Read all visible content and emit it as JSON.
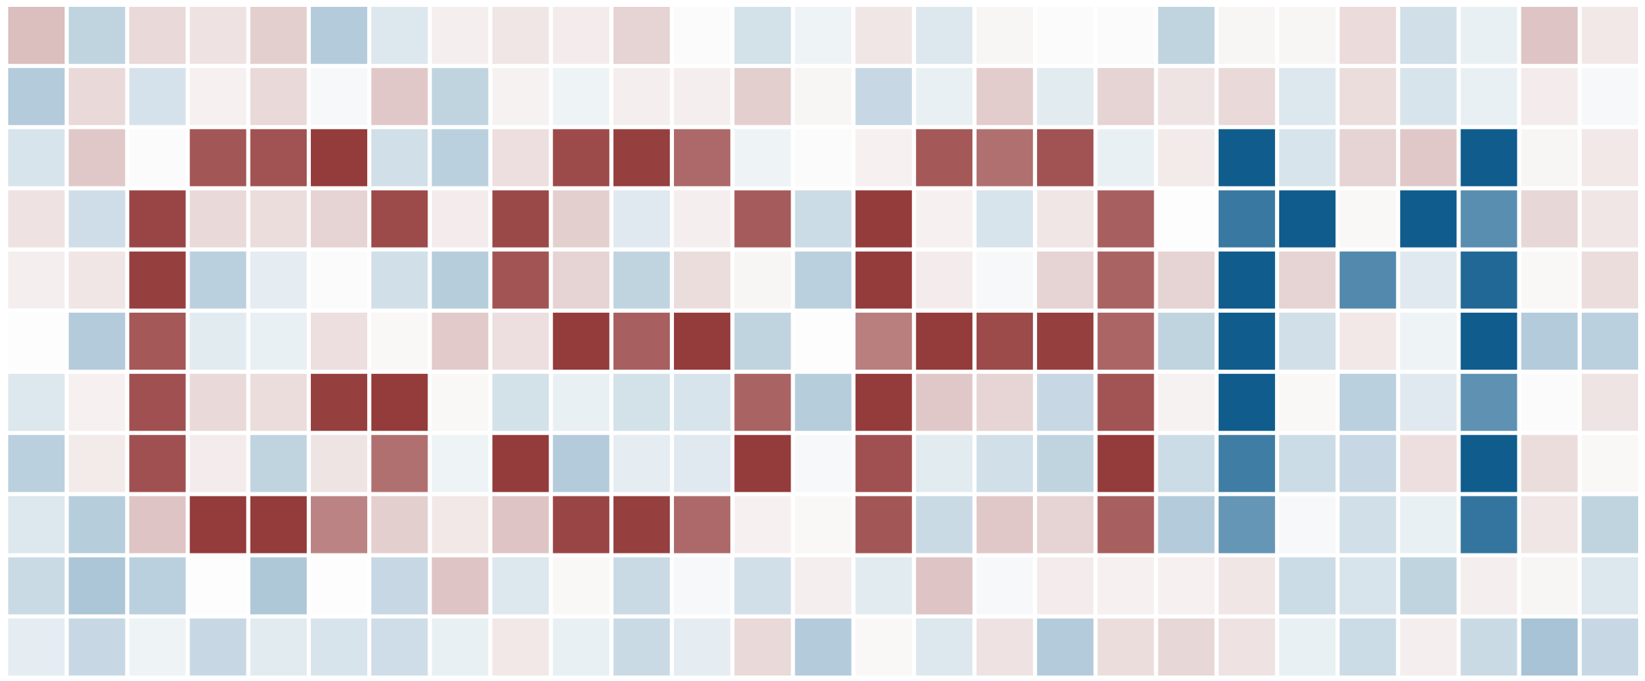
{
  "chart_data": {
    "type": "heatmap",
    "title": "",
    "xlabel": "",
    "ylabel": "",
    "value_range": [
      -1,
      1
    ],
    "colorscale": {
      "negative": "#8b2a2a",
      "zero": "#fdfdfd",
      "positive": "#08578a"
    },
    "rows": 11,
    "cols": 27,
    "values": [
      [
        -0.3,
        0.25,
        -0.17,
        -0.13,
        -0.22,
        0.3,
        0.13,
        -0.07,
        -0.11,
        -0.08,
        -0.2,
        0.01,
        0.17,
        0.06,
        -0.11,
        0.13,
        -0.04,
        0.01,
        0.01,
        0.25,
        -0.04,
        -0.04,
        -0.16,
        0.18,
        0.08,
        -0.27,
        -0.1
      ],
      [
        0.3,
        -0.17,
        0.16,
        -0.06,
        -0.17,
        0.03,
        -0.25,
        0.25,
        -0.05,
        0.06,
        -0.07,
        -0.07,
        -0.22,
        -0.04,
        0.22,
        0.08,
        -0.23,
        0.11,
        -0.2,
        -0.12,
        -0.17,
        0.13,
        -0.15,
        0.15,
        0.08,
        -0.08,
        0.03
      ],
      [
        0.15,
        -0.25,
        0.01,
        -0.79,
        -0.81,
        -0.92,
        0.18,
        0.27,
        -0.14,
        -0.85,
        -0.9,
        -0.7,
        0.06,
        0.01,
        -0.06,
        -0.78,
        -0.67,
        -0.81,
        0.08,
        -0.09,
        0.97,
        0.15,
        -0.2,
        -0.25,
        0.97,
        -0.04,
        -0.1
      ],
      [
        -0.13,
        0.19,
        -0.87,
        -0.17,
        -0.15,
        -0.2,
        -0.85,
        -0.08,
        -0.86,
        -0.22,
        0.12,
        -0.07,
        -0.77,
        0.2,
        -0.92,
        -0.06,
        0.15,
        -0.11,
        -0.75,
        0.0,
        0.8,
        0.97,
        -0.03,
        0.97,
        0.67,
        -0.18,
        -0.11
      ],
      [
        -0.07,
        -0.11,
        -0.9,
        0.27,
        0.1,
        0.01,
        0.18,
        0.29,
        -0.8,
        -0.2,
        0.25,
        -0.15,
        -0.04,
        0.27,
        -0.92,
        -0.08,
        0.03,
        -0.2,
        -0.73,
        -0.2,
        0.97,
        -0.2,
        0.7,
        0.12,
        0.9,
        -0.03,
        -0.15
      ],
      [
        0.0,
        0.3,
        -0.78,
        0.11,
        0.08,
        -0.14,
        -0.03,
        -0.24,
        -0.14,
        -0.92,
        -0.75,
        -0.92,
        0.25,
        0.0,
        -0.6,
        -0.92,
        -0.85,
        -0.9,
        -0.72,
        0.25,
        0.97,
        0.18,
        -0.1,
        0.06,
        0.97,
        0.3,
        0.27
      ],
      [
        0.13,
        -0.06,
        -0.82,
        -0.17,
        -0.15,
        -0.9,
        -0.92,
        -0.03,
        0.17,
        0.08,
        0.17,
        0.15,
        -0.73,
        0.29,
        -0.92,
        -0.25,
        -0.19,
        0.22,
        -0.8,
        -0.05,
        0.97,
        -0.03,
        0.27,
        0.12,
        0.65,
        0.01,
        -0.12
      ],
      [
        0.27,
        -0.09,
        -0.82,
        -0.08,
        0.25,
        -0.12,
        -0.67,
        0.06,
        -0.92,
        0.3,
        0.1,
        0.12,
        -0.92,
        0.03,
        -0.82,
        0.11,
        0.18,
        0.25,
        -0.92,
        0.2,
        0.77,
        0.2,
        0.22,
        -0.14,
        0.97,
        -0.15,
        -0.03
      ],
      [
        0.13,
        0.29,
        -0.27,
        -0.92,
        -0.92,
        -0.58,
        -0.22,
        -0.1,
        -0.27,
        -0.87,
        -0.9,
        -0.7,
        -0.06,
        -0.03,
        -0.79,
        0.21,
        -0.25,
        -0.2,
        -0.75,
        0.3,
        0.62,
        0.03,
        0.18,
        0.08,
        0.82,
        -0.11,
        0.25
      ],
      [
        0.21,
        0.33,
        0.27,
        0.0,
        0.32,
        0.0,
        0.22,
        -0.27,
        0.13,
        -0.03,
        0.21,
        0.03,
        0.18,
        -0.07,
        0.11,
        -0.27,
        0.03,
        -0.08,
        -0.06,
        -0.06,
        -0.11,
        0.2,
        0.15,
        0.25,
        -0.07,
        -0.04,
        0.13
      ],
      [
        0.1,
        0.22,
        0.06,
        0.22,
        0.11,
        0.15,
        0.19,
        0.08,
        -0.1,
        0.08,
        0.21,
        0.1,
        -0.17,
        0.3,
        -0.03,
        0.13,
        -0.13,
        0.3,
        -0.15,
        -0.18,
        -0.13,
        0.08,
        0.2,
        -0.07,
        0.21,
        0.35,
        0.22
      ]
    ]
  }
}
